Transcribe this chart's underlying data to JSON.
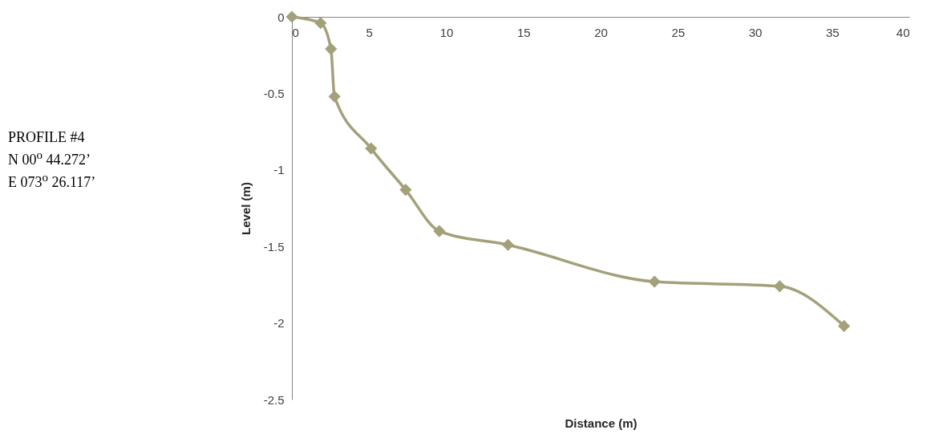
{
  "chart_data": {
    "type": "line",
    "xlabel": "Distance (m)",
    "ylabel": "Level (m)",
    "annotations": [
      "PROFILE #4",
      "N 00$^{o}$ 44.272’",
      "E 073$^{o}$ 26.117’"
    ],
    "x": [
      0,
      1.86,
      2.53,
      2.76,
      5.13,
      7.37,
      9.55,
      14,
      23.49,
      31.6,
      35.77
    ],
    "series": [
      {
        "color": "#a3a07a",
        "values": [
          0,
          -0.04,
          -0.21,
          -0.52,
          -0.86,
          -1.13,
          -1.4,
          -1.49,
          -1.73,
          -1.76,
          -2.02
        ]
      }
    ],
    "xlim": [
      0,
      40
    ],
    "xticks": [
      0,
      5,
      10,
      15,
      20,
      25,
      30,
      35,
      40
    ],
    "ylim": [
      -2.5,
      0
    ],
    "yticks": [
      -2.5,
      -2,
      -1.5,
      -1,
      -0.5,
      0
    ],
    "marker": "diamond",
    "line_style": "solid"
  }
}
